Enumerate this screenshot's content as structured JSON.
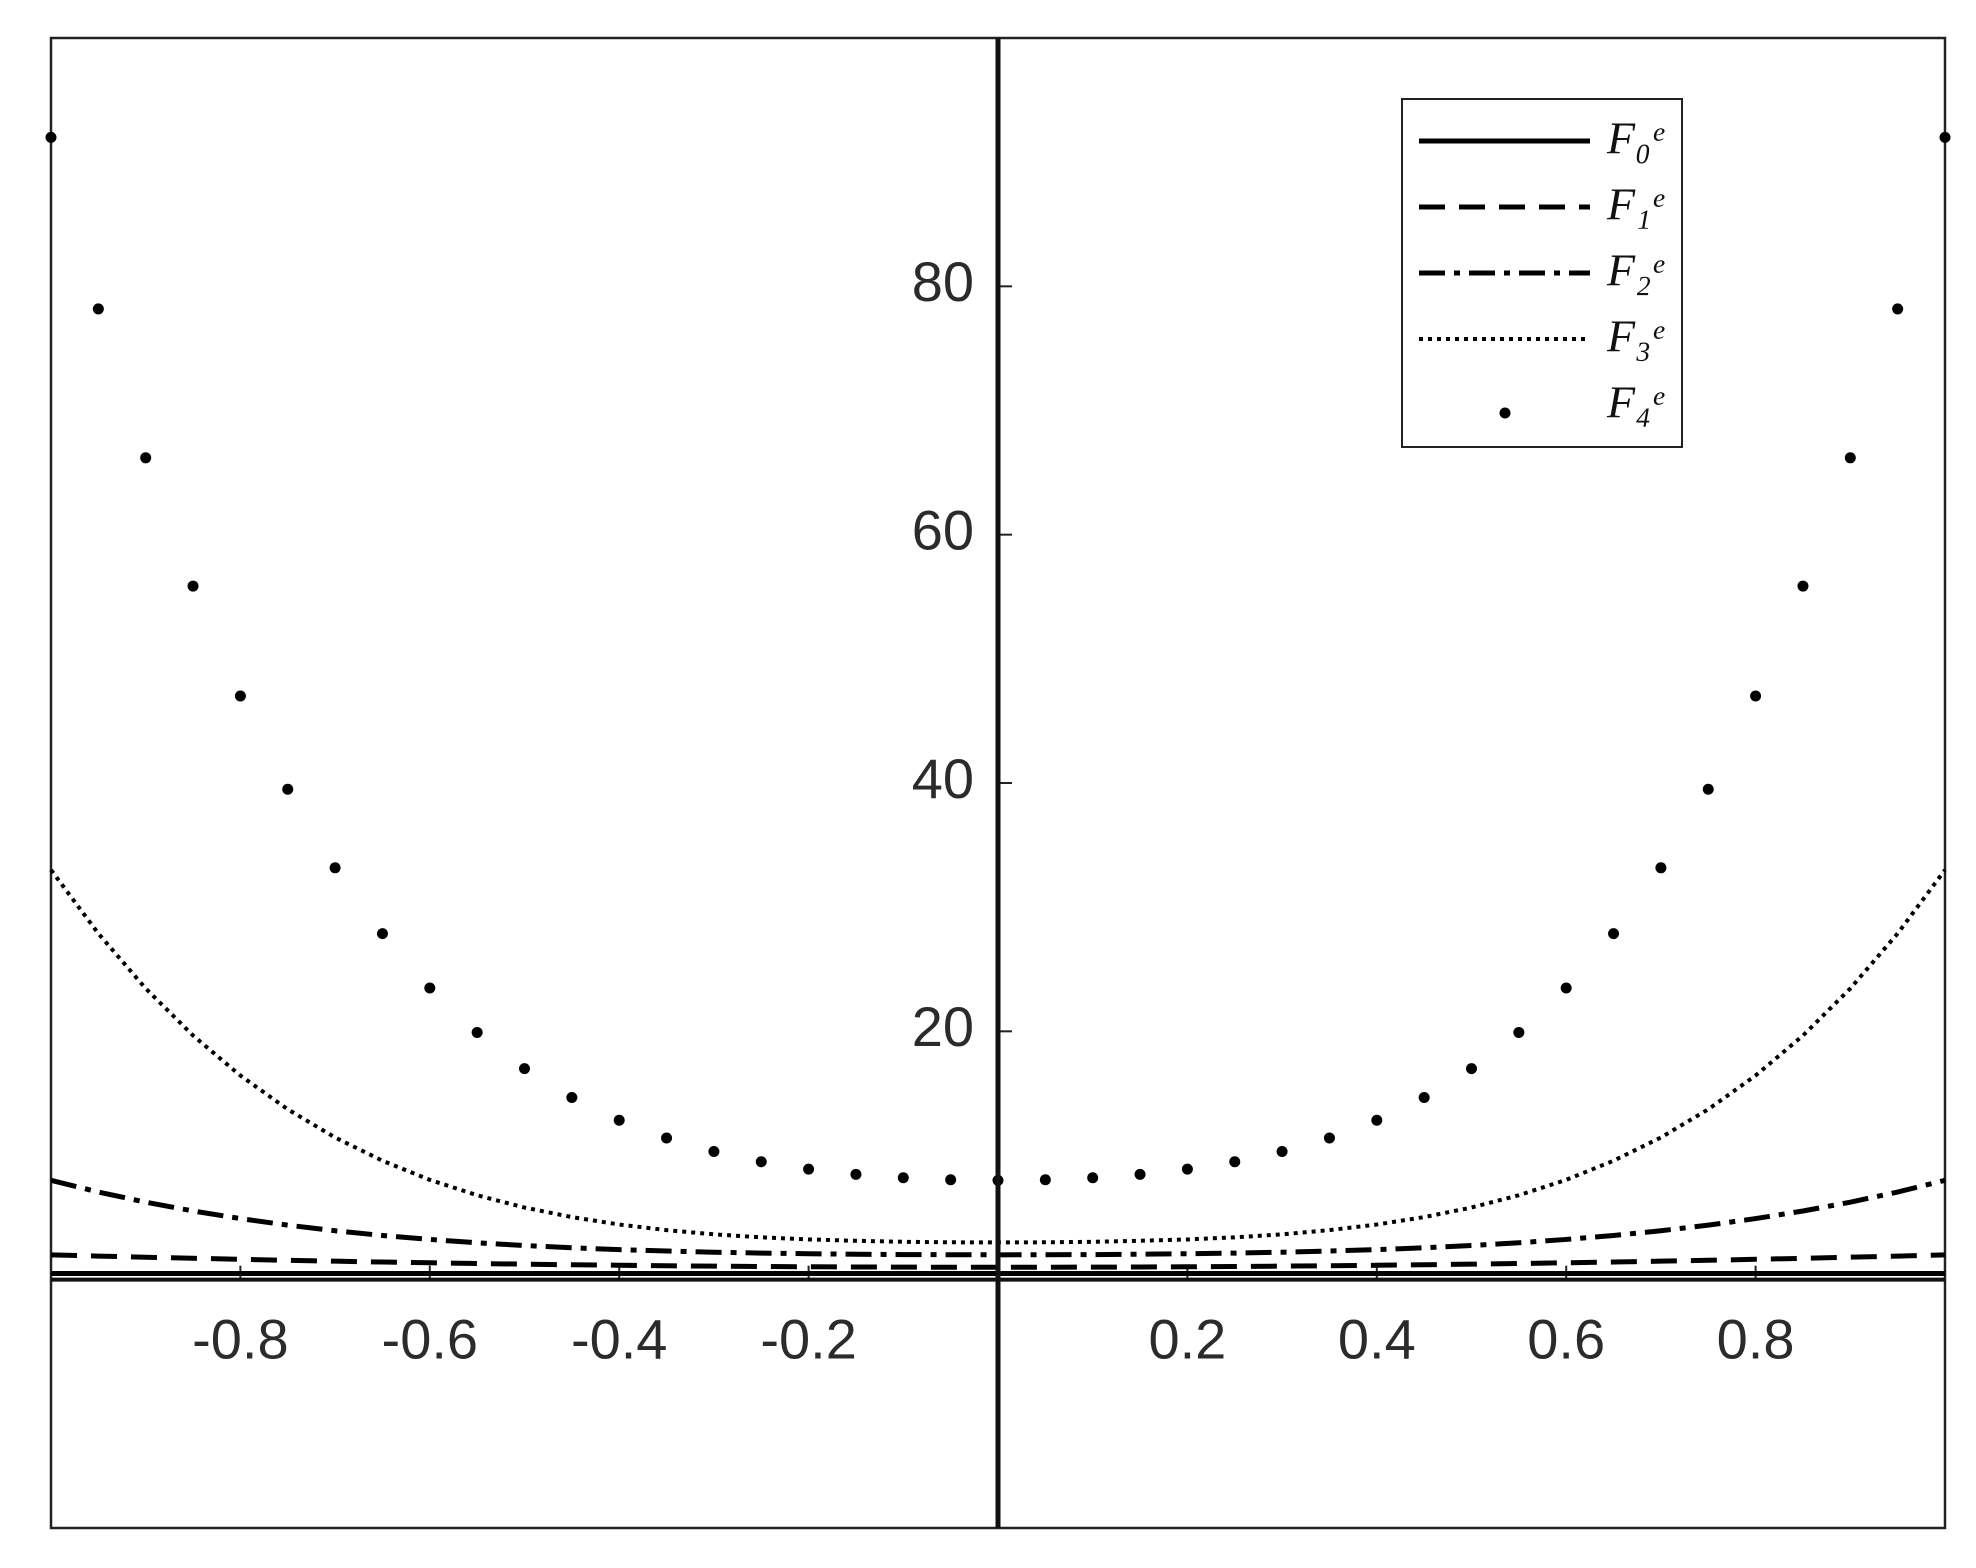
{
  "chart_data": {
    "type": "line",
    "x": [
      -1,
      -0.95,
      -0.9,
      -0.85,
      -0.8,
      -0.75,
      -0.7,
      -0.65,
      -0.6,
      -0.55,
      -0.5,
      -0.45,
      -0.4,
      -0.35,
      -0.3,
      -0.25,
      -0.2,
      -0.15,
      -0.1,
      -0.05,
      0,
      0.05,
      0.1,
      0.15,
      0.2,
      0.25,
      0.3,
      0.35,
      0.4,
      0.45,
      0.5,
      0.55,
      0.6,
      0.65,
      0.7,
      0.75,
      0.8,
      0.85,
      0.9,
      0.95,
      1
    ],
    "series": [
      {
        "name": "F₀ᵉ",
        "color": "#000000",
        "style": "solid",
        "values": [
          0.5,
          0.5,
          0.5,
          0.5,
          0.5,
          0.5,
          0.5,
          0.5,
          0.5,
          0.5,
          0.5,
          0.5,
          0.5,
          0.5,
          0.5,
          0.5,
          0.5,
          0.5,
          0.5,
          0.5,
          0.5,
          0.5,
          0.5,
          0.5,
          0.5,
          0.5,
          0.5,
          0.5,
          0.5,
          0.5,
          0.5,
          0.5,
          0.5,
          0.5,
          0.5,
          0.5,
          0.5,
          0.5,
          0.5,
          0.5,
          0.5
        ]
      },
      {
        "name": "F₁ᵉ",
        "color": "#000000",
        "style": "dashed",
        "values": [
          2,
          1.9,
          1.81,
          1.72,
          1.64,
          1.56,
          1.49,
          1.42,
          1.36,
          1.3,
          1.25,
          1.2,
          1.16,
          1.12,
          1.09,
          1.06,
          1.04,
          1.02,
          1.01,
          1,
          1,
          1,
          1.01,
          1.02,
          1.04,
          1.06,
          1.09,
          1.12,
          1.16,
          1.2,
          1.25,
          1.3,
          1.36,
          1.42,
          1.49,
          1.56,
          1.64,
          1.72,
          1.81,
          1.9,
          2
        ]
      },
      {
        "name": "F₂ᵉ",
        "color": "#000000",
        "style": "dashdot",
        "values": [
          8,
          7.06,
          6.24,
          5.53,
          4.92,
          4.39,
          3.94,
          3.56,
          3.24,
          2.97,
          2.75,
          2.57,
          2.42,
          2.31,
          2.21,
          2.14,
          2.09,
          2.05,
          2.02,
          2.01,
          2,
          2.01,
          2.02,
          2.05,
          2.09,
          2.14,
          2.21,
          2.31,
          2.42,
          2.57,
          2.75,
          2.97,
          3.24,
          3.56,
          3.94,
          4.39,
          4.92,
          5.53,
          6.24,
          7.06,
          8
        ]
      },
      {
        "name": "F₃ᵉ",
        "color": "#000000",
        "style": "dotted",
        "values": [
          33,
          27.88,
          23.45,
          19.66,
          16.44,
          13.72,
          11.45,
          9.58,
          8.04,
          6.8,
          5.81,
          5.04,
          4.44,
          3.99,
          3.65,
          3.41,
          3.24,
          3.13,
          3.05,
          3.01,
          3,
          3.01,
          3.05,
          3.13,
          3.24,
          3.41,
          3.65,
          3.99,
          4.44,
          5.04,
          5.81,
          6.8,
          8.04,
          9.58,
          11.45,
          13.72,
          16.44,
          19.66,
          23.45,
          27.88,
          33
        ]
      },
      {
        "name": "F₄ᵉ",
        "color": "#000000",
        "style": "markers",
        "values": [
          92,
          78.18,
          66.19,
          55.86,
          47.01,
          39.5,
          33.17,
          27.87,
          23.49,
          19.91,
          17,
          14.67,
          12.84,
          11.41,
          10.32,
          9.5,
          8.9,
          8.48,
          8.21,
          8.05,
          8,
          8.05,
          8.21,
          8.48,
          8.9,
          9.5,
          10.32,
          11.41,
          12.84,
          14.67,
          17,
          19.91,
          23.49,
          27.87,
          33.17,
          39.5,
          47.01,
          55.86,
          66.19,
          78.18,
          92
        ]
      }
    ],
    "xlim": [
      -1,
      1
    ],
    "ylim": [
      -20,
      100
    ],
    "xticks": [
      -0.8,
      -0.6,
      -0.4,
      -0.2,
      0.2,
      0.4,
      0.6,
      0.8
    ],
    "yticks": [
      20,
      40,
      60,
      80
    ],
    "legend": "top right",
    "grid": false
  }
}
